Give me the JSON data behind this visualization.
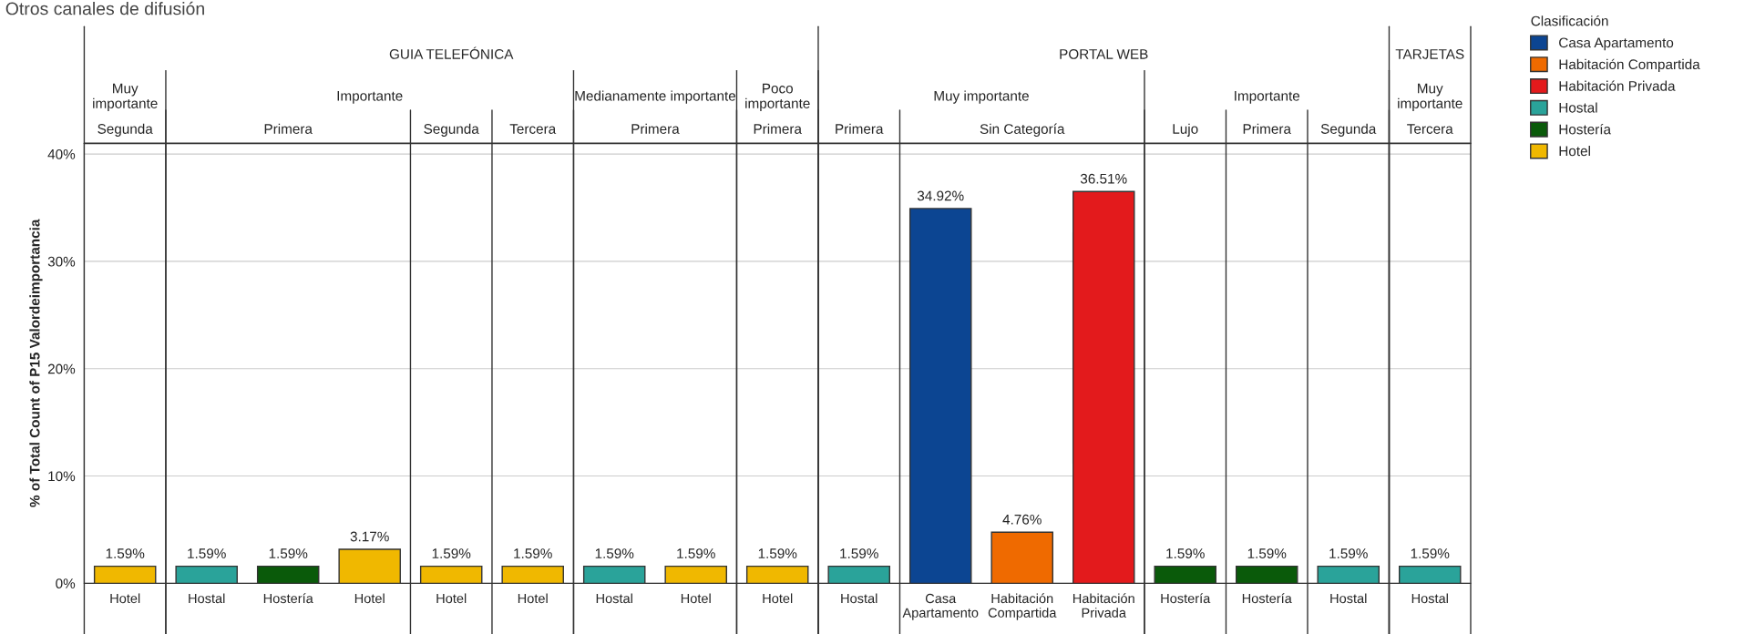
{
  "chart_data": {
    "type": "bar",
    "title": "Otros canales de difusión",
    "categories": [
      "Hotel",
      "Hostal",
      "Hostería",
      "Hotel",
      "Hotel",
      "Hotel",
      "Hostal",
      "Hotel",
      "Hotel",
      "Hostal",
      "Casa Apartamento",
      "Habitación Compartida",
      "Habitación Privada",
      "Hostería",
      "Hostería",
      "Hostal",
      "Hostal"
    ],
    "series": [
      {
        "name": "Casa Apartamento",
        "color": "#0c4592",
        "values": [
          null,
          null,
          null,
          null,
          null,
          null,
          null,
          null,
          null,
          null,
          34.92,
          null,
          null,
          null,
          null,
          null,
          null
        ],
        "value_labels": [
          null,
          null,
          null,
          null,
          null,
          null,
          null,
          null,
          null,
          null,
          "34.92%",
          null,
          null,
          null,
          null,
          null,
          null
        ]
      },
      {
        "name": "Habitación Compartida",
        "color": "#ef6a00",
        "values": [
          null,
          null,
          null,
          null,
          null,
          null,
          null,
          null,
          null,
          null,
          null,
          4.76,
          null,
          null,
          null,
          null,
          null
        ],
        "value_labels": [
          null,
          null,
          null,
          null,
          null,
          null,
          null,
          null,
          null,
          null,
          null,
          "4.76%",
          null,
          null,
          null,
          null,
          null
        ]
      },
      {
        "name": "Habitación Privada",
        "color": "#e31a1c",
        "values": [
          null,
          null,
          null,
          null,
          null,
          null,
          null,
          null,
          null,
          null,
          null,
          null,
          36.51,
          null,
          null,
          null,
          null
        ],
        "value_labels": [
          null,
          null,
          null,
          null,
          null,
          null,
          null,
          null,
          null,
          null,
          null,
          null,
          "36.51%",
          null,
          null,
          null,
          null
        ]
      },
      {
        "name": "Hostal",
        "color": "#2aa39a",
        "values": [
          null,
          1.59,
          null,
          null,
          null,
          null,
          1.59,
          null,
          null,
          1.59,
          null,
          null,
          null,
          null,
          null,
          1.59,
          1.59
        ],
        "value_labels": [
          null,
          "1.59%",
          null,
          null,
          null,
          null,
          "1.59%",
          null,
          null,
          "1.59%",
          null,
          null,
          null,
          null,
          null,
          "1.59%",
          "1.59%"
        ]
      },
      {
        "name": "Hostería",
        "color": "#0a5a0a",
        "values": [
          null,
          null,
          1.59,
          null,
          null,
          null,
          null,
          null,
          null,
          null,
          null,
          null,
          null,
          1.59,
          1.59,
          null,
          null
        ],
        "value_labels": [
          null,
          null,
          "1.59%",
          null,
          null,
          null,
          null,
          null,
          null,
          null,
          null,
          null,
          null,
          "1.59%",
          "1.59%",
          null,
          null
        ]
      },
      {
        "name": "Hotel",
        "color": "#f0b800",
        "values": [
          1.59,
          null,
          null,
          3.17,
          1.59,
          1.59,
          null,
          1.59,
          1.59,
          null,
          null,
          null,
          null,
          null,
          null,
          null,
          null
        ],
        "value_labels": [
          "1.59%",
          null,
          null,
          "3.17%",
          "1.59%",
          "1.59%",
          null,
          "1.59%",
          "1.59%",
          null,
          null,
          null,
          null,
          null,
          null,
          null,
          null
        ]
      }
    ],
    "ylabel": "% of Total Count of P15 Valordeimportancia",
    "legend_title": "Clasificación",
    "legend": "top right",
    "ylim": [
      0,
      41
    ],
    "yticks": [
      {
        "value": 0,
        "label": "0%"
      },
      {
        "value": 10,
        "label": "10%"
      },
      {
        "value": 20,
        "label": "20%"
      },
      {
        "value": 30,
        "label": "30%"
      },
      {
        "value": 40,
        "label": "40%"
      }
    ],
    "grid": "y",
    "annotations": [
      "GUIA TELEFÓNICA",
      "PORTAL WEB",
      "TARJETAS",
      "Muy importante",
      "Importante",
      "Medianamente importante",
      "Poco importante",
      "Muy importante",
      "Importante",
      "Muy importante",
      "Segunda",
      "Primera",
      "Segunda",
      "Tercera",
      "Primera",
      "Primera",
      "Primera",
      "Sin Categoría",
      "Lujo",
      "Primera",
      "Segunda",
      "Tercera"
    ]
  }
}
